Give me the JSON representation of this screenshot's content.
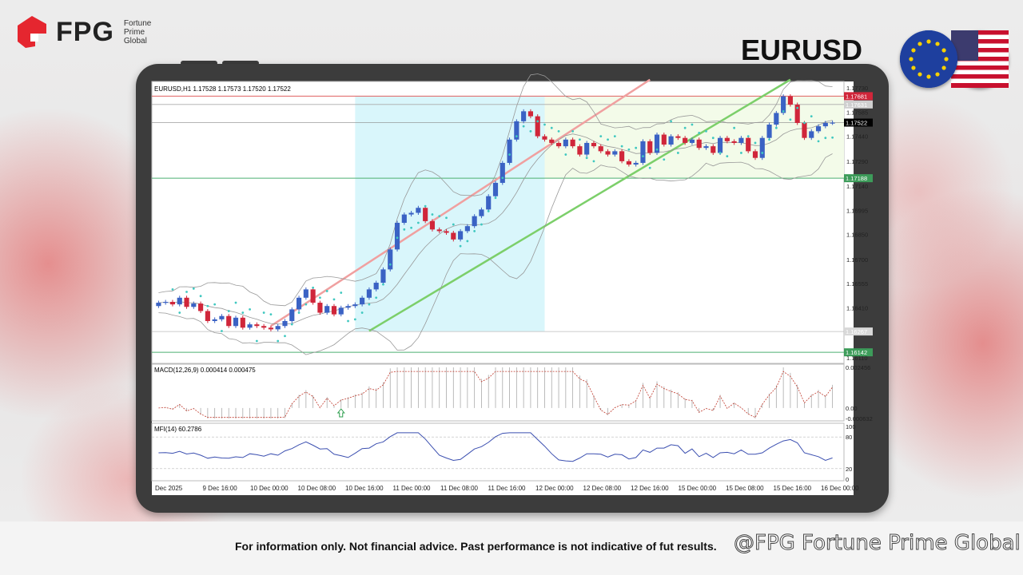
{
  "brand": {
    "logo_text": "FPG",
    "logo_sub": [
      "Fortune",
      "Prime",
      "Global"
    ],
    "red": "#e5262f"
  },
  "pair": "EURUSD",
  "flags": [
    "eu-flag",
    "us-flag"
  ],
  "chart": {
    "header": "EURUSD,H1  1.17528 1.17573 1.17520 1.17522",
    "price_axis": [
      "1.17730",
      "1.17585",
      "1.17440",
      "1.17290",
      "1.17140",
      "1.16995",
      "1.16850",
      "1.16700",
      "1.16555",
      "1.16410",
      "1.16110"
    ],
    "tags": {
      "resistance": "1.17681",
      "upper": "1.17631",
      "current": "1.17522",
      "support": "1.17188",
      "lower_gray": "1.16267",
      "bottom": "1.16142"
    },
    "colors": {
      "bull": "#3a62c4",
      "bear": "#d0263a",
      "psar": "#40c8c0",
      "resistance": "#e06060",
      "support": "#4caf70",
      "channel": "#7ccf6a",
      "highlight": "#d9f6fb",
      "mfi": "#3b4fb0",
      "macd_signal": "#c0392b"
    },
    "macd_label": "MACD(12,26,9) 0.000414 0.000475",
    "macd_axis": [
      "0.002456",
      "0.00",
      "-0.000632"
    ],
    "mfi_label": "MFI(14) 60.2786",
    "mfi_axis": [
      "100",
      "80",
      "20",
      "0"
    ],
    "time_axis": [
      "Dec 2025",
      "9 Dec 16:00",
      "10 Dec 00:00",
      "10 Dec 08:00",
      "10 Dec 16:00",
      "11 Dec 00:00",
      "11 Dec 08:00",
      "11 Dec 16:00",
      "12 Dec 00:00",
      "12 Dec 08:00",
      "12 Dec 16:00",
      "15 Dec 00:00",
      "15 Dec 08:00",
      "15 Dec 16:00",
      "16 Dec 00:00"
    ]
  },
  "chart_data": {
    "type": "candlestick",
    "title": "EURUSD,H1",
    "ohlc_last": {
      "open": 1.17528,
      "high": 1.17573,
      "low": 1.1752,
      "close": 1.17522
    },
    "closes": [
      1.1644,
      1.16445,
      1.1643,
      1.1647,
      1.16415,
      1.16435,
      1.1639,
      1.1633,
      1.1634,
      1.1636,
      1.163,
      1.1635,
      1.1629,
      1.1631,
      1.163,
      1.1629,
      1.1628,
      1.163,
      1.1633,
      1.164,
      1.1647,
      1.1652,
      1.1644,
      1.1638,
      1.1642,
      1.1637,
      1.1641,
      1.1642,
      1.1643,
      1.1647,
      1.1652,
      1.1656,
      1.1664,
      1.1676,
      1.1692,
      1.1697,
      1.1698,
      1.1701,
      1.1693,
      1.1688,
      1.1687,
      1.1686,
      1.1682,
      1.1687,
      1.169,
      1.1696,
      1.17,
      1.1708,
      1.1716,
      1.1728,
      1.1742,
      1.1753,
      1.1759,
      1.1756,
      1.1744,
      1.1742,
      1.174,
      1.1738,
      1.1742,
      1.1738,
      1.1733,
      1.174,
      1.1738,
      1.1735,
      1.1733,
      1.1735,
      1.1729,
      1.1727,
      1.1728,
      1.1741,
      1.1734,
      1.1745,
      1.1739,
      1.1744,
      1.1743,
      1.174,
      1.1742,
      1.1737,
      1.1738,
      1.1734,
      1.1743,
      1.1741,
      1.174,
      1.1743,
      1.1735,
      1.1731,
      1.1743,
      1.1751,
      1.1758,
      1.1768,
      1.1763,
      1.1752,
      1.1743,
      1.1747,
      1.175,
      1.1752,
      1.17522
    ],
    "levels": {
      "resistance": 1.17681,
      "upper": 1.17631,
      "support": 1.17188,
      "lower": 1.16267,
      "bottom": 1.16142
    },
    "ylim": [
      1.1609,
      1.1775
    ],
    "macd": {
      "value": 0.000414,
      "signal": 0.000475,
      "ylim": [
        -0.000632,
        0.002456
      ]
    },
    "mfi": {
      "value": 60.2786,
      "ylim": [
        0,
        100
      ],
      "levels": [
        20,
        80
      ]
    }
  },
  "footer": {
    "disclaimer": "For information only. Not financial advice. Past performance is not indicative of fut  results.",
    "watermark": "@FPG Fortune Prime Global"
  }
}
